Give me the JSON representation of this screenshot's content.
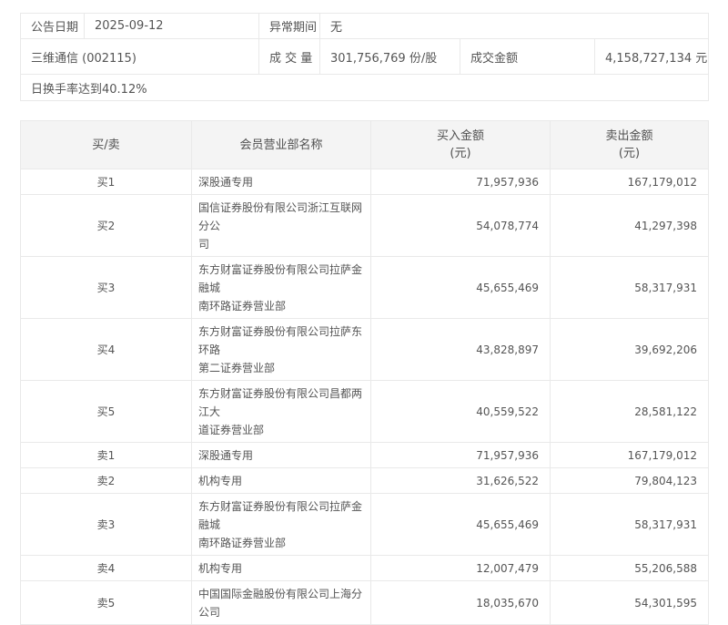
{
  "info": {
    "announce_date_label": "公告日期",
    "announce_date_value": "2025-09-12",
    "abnormal_period_label": "异常期间",
    "abnormal_period_value": "无",
    "stock_name": "三维通信 (002115)",
    "volume_label": "成 交 量",
    "volume_value": "301,756,769 份/股",
    "amount_label": "成交金额",
    "amount_value": "4,158,727,134 元",
    "turnover_note": "日换手率达到40.12%"
  },
  "rank_table": {
    "headers": {
      "side": "买/卖",
      "branch": "会员营业部名称",
      "buy_line1": "买入金额",
      "sell_line1": "卖出金额",
      "unit_line2": "(元)"
    },
    "rows": [
      {
        "side": "买1",
        "branch": "深股通专用",
        "buy": "71,957,936",
        "sell": "167,179,012"
      },
      {
        "side": "买2",
        "branch": "国信证券股份有限公司浙江互联网分公\n司",
        "buy": "54,078,774",
        "sell": "41,297,398"
      },
      {
        "side": "买3",
        "branch": "东方财富证券股份有限公司拉萨金融城\n南环路证券营业部",
        "buy": "45,655,469",
        "sell": "58,317,931"
      },
      {
        "side": "买4",
        "branch": "东方财富证券股份有限公司拉萨东环路\n第二证券营业部",
        "buy": "43,828,897",
        "sell": "39,692,206"
      },
      {
        "side": "买5",
        "branch": "东方财富证券股份有限公司昌都两江大\n道证券营业部",
        "buy": "40,559,522",
        "sell": "28,581,122"
      },
      {
        "side": "卖1",
        "branch": "深股通专用",
        "buy": "71,957,936",
        "sell": "167,179,012"
      },
      {
        "side": "卖2",
        "branch": "机构专用",
        "buy": "31,626,522",
        "sell": "79,804,123"
      },
      {
        "side": "卖3",
        "branch": "东方财富证券股份有限公司拉萨金融城\n南环路证券营业部",
        "buy": "45,655,469",
        "sell": "58,317,931"
      },
      {
        "side": "卖4",
        "branch": "机构专用",
        "buy": "12,007,479",
        "sell": "55,206,588"
      },
      {
        "side": "卖5",
        "branch": "中国国际金融股份有限公司上海分公司",
        "buy": "18,035,670",
        "sell": "54,301,595"
      }
    ]
  },
  "colors": {
    "header_bg": "#f4f4f4",
    "border": "#e9e9e9",
    "text": "#555555"
  }
}
